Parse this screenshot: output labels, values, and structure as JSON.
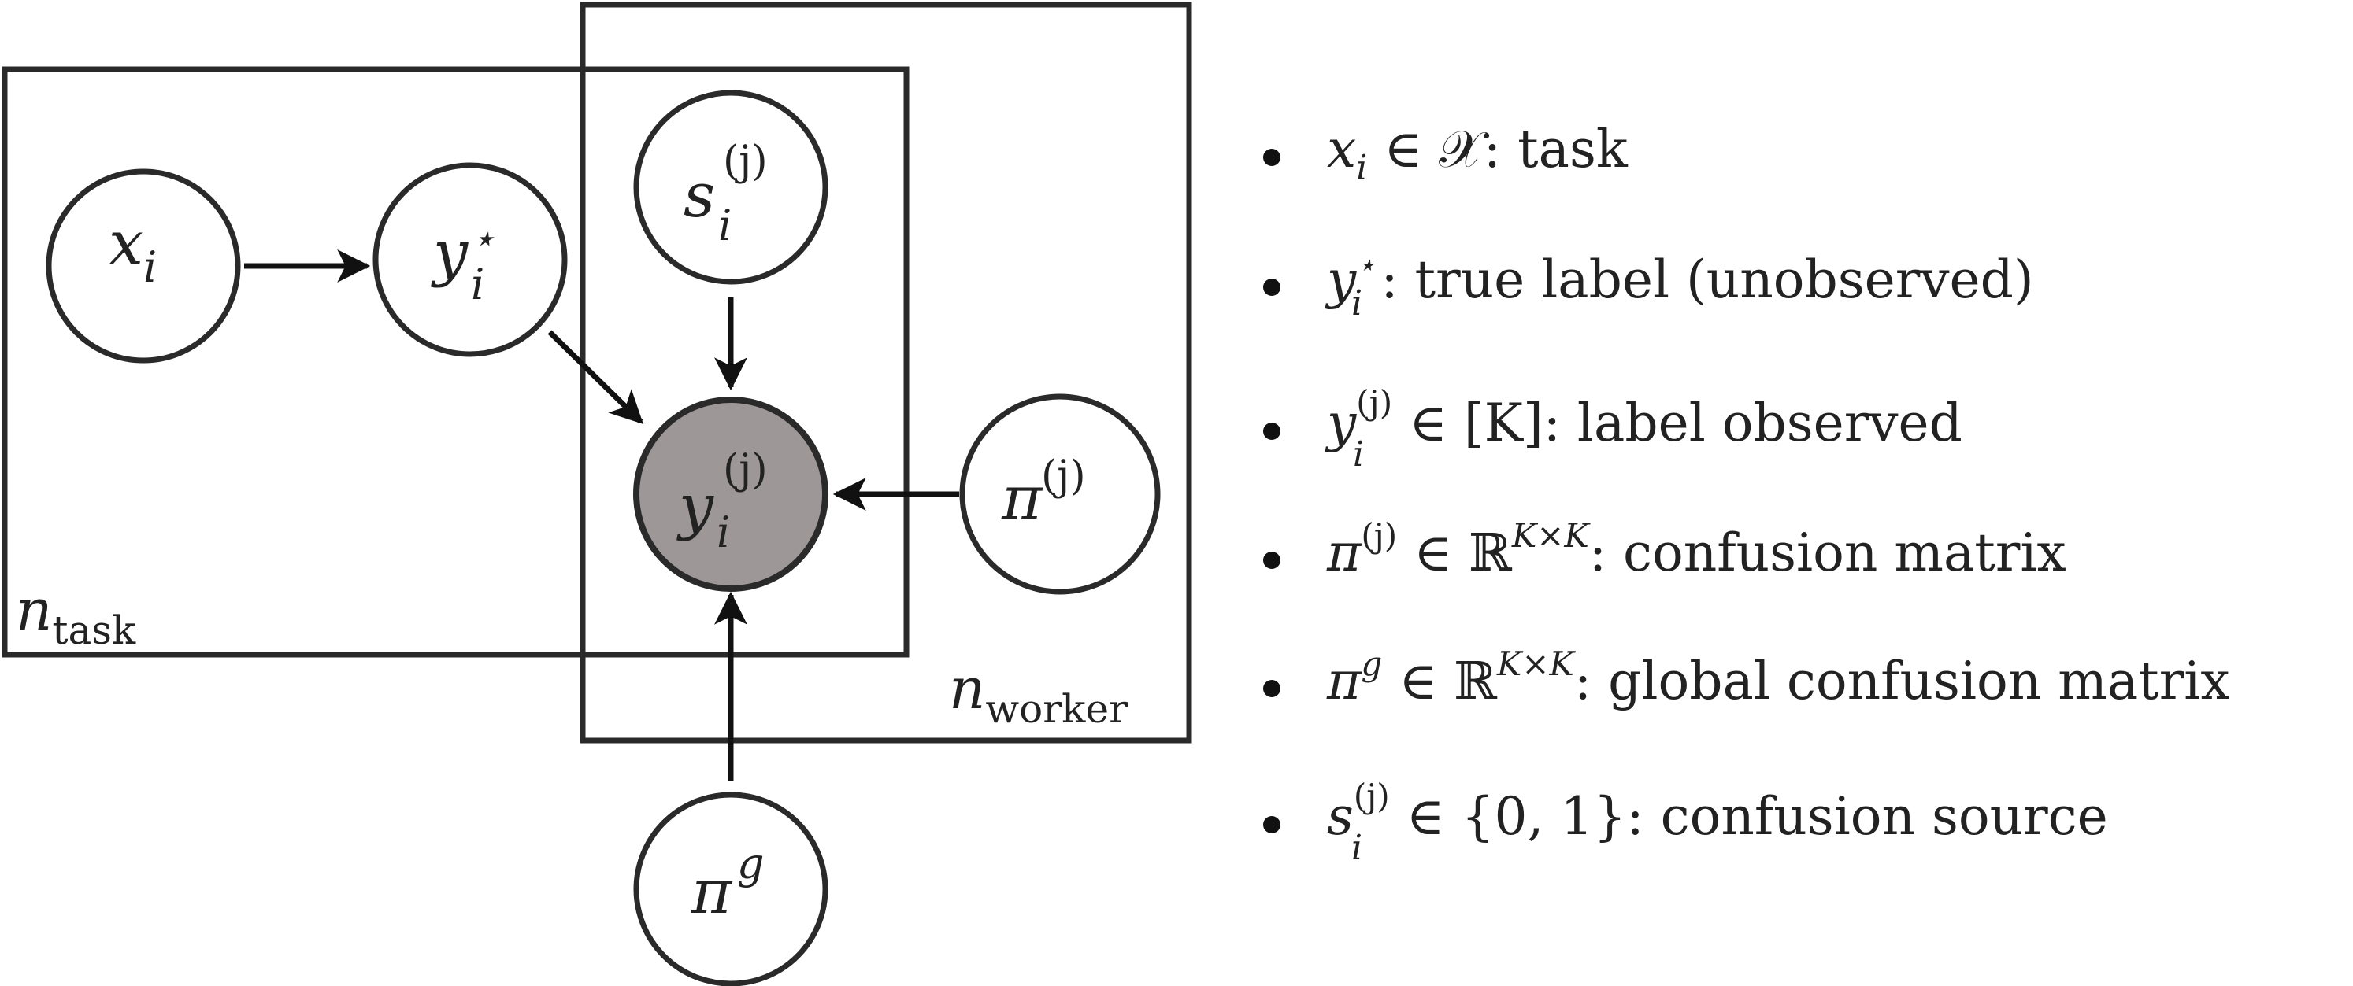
{
  "nodes": {
    "x": {
      "base": "x",
      "sub": "i"
    },
    "ystar": {
      "base": "y",
      "sub": "i",
      "sup": "⋆"
    },
    "s": {
      "base": "s",
      "sub": "i",
      "sup": "(j)"
    },
    "yobs": {
      "base": "y",
      "sub": "i",
      "sup": "(j)"
    },
    "piw": {
      "base": "π",
      "sup": "(j)"
    },
    "pig": {
      "base": "π",
      "sup": "g"
    }
  },
  "plates": {
    "task": {
      "base": "n",
      "sub": "task"
    },
    "worker": {
      "base": "n",
      "sub": "worker"
    }
  },
  "legend": [
    {
      "sym": "x",
      "sub": "i",
      "rel": " ∈ 𝒳",
      "text": ": task"
    },
    {
      "sym": "y",
      "sub": "i",
      "sup": "⋆",
      "text": ": true label (unobserved)"
    },
    {
      "sym": "y",
      "sub": "i",
      "sup": "(j)",
      "rel": " ∈ [K]",
      "text": ": label observed"
    },
    {
      "sym": "π",
      "sup": "(j)",
      "rel": " ∈ ℝ",
      "relsup": "K×K",
      "text": ": confusion matrix"
    },
    {
      "sym": "π",
      "sup": "g",
      "rel": " ∈ ℝ",
      "relsup": "K×K",
      "text": ": global confusion matrix"
    },
    {
      "sym": "s",
      "sub": "i",
      "sup": "(j)",
      "rel": " ∈ {0, 1}",
      "text": ": confusion source"
    }
  ]
}
